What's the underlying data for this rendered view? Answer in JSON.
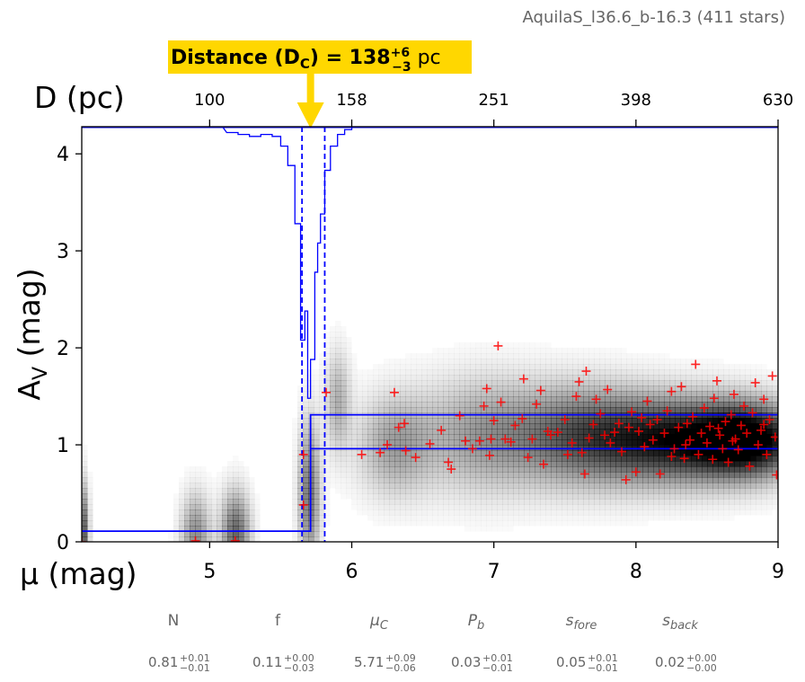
{
  "chart_data": {
    "type": "scatter",
    "title": "AquilaS_l36.6_b-16.3 (411 stars)",
    "xlabel": "μ (mag)",
    "ylabel": "A_V (mag)",
    "top_axis_label": "D (pc)",
    "xlim": [
      4.1,
      9.0
    ],
    "ylim": [
      0,
      4.28
    ],
    "x_ticks": [
      5,
      6,
      7,
      8,
      9
    ],
    "y_ticks": [
      0,
      1,
      2,
      3,
      4
    ],
    "top_ticks": [
      {
        "mu": 5.0,
        "label": "100"
      },
      {
        "mu": 6.0,
        "label": "158"
      },
      {
        "mu": 7.0,
        "label": "251"
      },
      {
        "mu": 8.0,
        "label": "398"
      },
      {
        "mu": 9.0,
        "label": "630"
      }
    ],
    "annotation": {
      "prefix": "Distance (D",
      "sub": "C",
      "mid": ") = 138",
      "sup": "+6",
      "sub2": "−3",
      "unit": " pc",
      "color": "#FFD700"
    },
    "model": {
      "mu_c": 5.71,
      "mu_c_lo": 5.65,
      "mu_c_hi": 5.81,
      "fore_av": 0.11,
      "back_av_low": 0.96,
      "back_av_high": 1.31,
      "line_color": "#0000ff"
    },
    "posterior_hist": [
      {
        "mu": 5.12,
        "depth": 0.06
      },
      {
        "mu": 5.2,
        "depth": 0.08
      },
      {
        "mu": 5.28,
        "depth": 0.1
      },
      {
        "mu": 5.36,
        "depth": 0.08
      },
      {
        "mu": 5.44,
        "depth": 0.1
      },
      {
        "mu": 5.5,
        "depth": 0.2
      },
      {
        "mu": 5.55,
        "depth": 0.4
      },
      {
        "mu": 5.6,
        "depth": 1.0
      },
      {
        "mu": 5.64,
        "depth": 2.2
      },
      {
        "mu": 5.67,
        "depth": 1.9
      },
      {
        "mu": 5.69,
        "depth": 2.8
      },
      {
        "mu": 5.71,
        "depth": 2.4
      },
      {
        "mu": 5.74,
        "depth": 1.5
      },
      {
        "mu": 5.76,
        "depth": 1.2
      },
      {
        "mu": 5.78,
        "depth": 0.9
      },
      {
        "mu": 5.81,
        "depth": 0.45
      },
      {
        "mu": 5.85,
        "depth": 0.2
      },
      {
        "mu": 5.9,
        "depth": 0.08
      },
      {
        "mu": 5.95,
        "depth": 0.03
      }
    ],
    "stars_color": "#ff0000",
    "stars": [
      [
        4.1,
        0.0
      ],
      [
        4.9,
        0.01
      ],
      [
        5.18,
        0.01
      ],
      [
        5.66,
        0.9
      ],
      [
        5.66,
        0.38
      ],
      [
        5.82,
        1.54
      ],
      [
        6.07,
        0.9
      ],
      [
        6.2,
        0.92
      ],
      [
        6.25,
        1.0
      ],
      [
        6.3,
        1.54
      ],
      [
        6.33,
        1.18
      ],
      [
        6.37,
        1.22
      ],
      [
        6.38,
        0.94
      ],
      [
        6.45,
        0.87
      ],
      [
        6.55,
        1.01
      ],
      [
        6.63,
        1.15
      ],
      [
        6.68,
        0.82
      ],
      [
        6.7,
        0.75
      ],
      [
        6.76,
        1.3
      ],
      [
        6.8,
        1.04
      ],
      [
        6.85,
        0.96
      ],
      [
        6.9,
        1.04
      ],
      [
        6.93,
        1.4
      ],
      [
        6.95,
        1.58
      ],
      [
        6.97,
        0.89
      ],
      [
        6.98,
        1.06
      ],
      [
        7.0,
        1.25
      ],
      [
        7.03,
        2.02
      ],
      [
        7.05,
        1.44
      ],
      [
        7.08,
        1.06
      ],
      [
        7.12,
        1.03
      ],
      [
        7.15,
        1.2
      ],
      [
        7.2,
        1.27
      ],
      [
        7.21,
        1.68
      ],
      [
        7.24,
        0.87
      ],
      [
        7.27,
        1.06
      ],
      [
        7.3,
        1.42
      ],
      [
        7.33,
        1.56
      ],
      [
        7.35,
        0.8
      ],
      [
        7.38,
        1.14
      ],
      [
        7.4,
        1.1
      ],
      [
        7.45,
        1.13
      ],
      [
        7.5,
        1.26
      ],
      [
        7.52,
        0.9
      ],
      [
        7.55,
        1.02
      ],
      [
        7.58,
        1.5
      ],
      [
        7.6,
        1.65
      ],
      [
        7.62,
        0.92
      ],
      [
        7.64,
        0.7
      ],
      [
        7.65,
        1.76
      ],
      [
        7.67,
        1.07
      ],
      [
        7.7,
        1.21
      ],
      [
        7.72,
        1.47
      ],
      [
        7.75,
        1.32
      ],
      [
        7.78,
        1.1
      ],
      [
        7.8,
        1.57
      ],
      [
        7.82,
        1.02
      ],
      [
        7.85,
        1.13
      ],
      [
        7.88,
        1.22
      ],
      [
        7.9,
        0.93
      ],
      [
        7.93,
        0.64
      ],
      [
        7.95,
        1.18
      ],
      [
        7.97,
        1.34
      ],
      [
        8.0,
        0.72
      ],
      [
        8.02,
        1.14
      ],
      [
        8.04,
        1.28
      ],
      [
        8.06,
        0.98
      ],
      [
        8.08,
        1.45
      ],
      [
        8.1,
        1.21
      ],
      [
        8.12,
        1.05
      ],
      [
        8.15,
        1.26
      ],
      [
        8.17,
        0.7
      ],
      [
        8.2,
        1.12
      ],
      [
        8.22,
        1.35
      ],
      [
        8.25,
        1.55
      ],
      [
        8.27,
        0.96
      ],
      [
        8.3,
        1.18
      ],
      [
        8.32,
        1.6
      ],
      [
        8.34,
        0.86
      ],
      [
        8.36,
        1.22
      ],
      [
        8.38,
        1.05
      ],
      [
        8.4,
        1.29
      ],
      [
        8.42,
        1.83
      ],
      [
        8.44,
        0.9
      ],
      [
        8.46,
        1.12
      ],
      [
        8.48,
        1.38
      ],
      [
        8.5,
        1.02
      ],
      [
        8.52,
        1.19
      ],
      [
        8.54,
        0.85
      ],
      [
        8.55,
        1.48
      ],
      [
        8.57,
        1.66
      ],
      [
        8.59,
        1.1
      ],
      [
        8.61,
        0.96
      ],
      [
        8.63,
        1.24
      ],
      [
        8.65,
        0.82
      ],
      [
        8.67,
        1.31
      ],
      [
        8.69,
        1.52
      ],
      [
        8.7,
        1.06
      ],
      [
        8.72,
        0.95
      ],
      [
        8.74,
        1.2
      ],
      [
        8.76,
        1.4
      ],
      [
        8.78,
        1.12
      ],
      [
        8.8,
        0.78
      ],
      [
        8.82,
        1.33
      ],
      [
        8.84,
        1.64
      ],
      [
        8.86,
        1.0
      ],
      [
        8.88,
        1.15
      ],
      [
        8.9,
        1.47
      ],
      [
        8.92,
        0.9
      ],
      [
        8.94,
        1.26
      ],
      [
        8.96,
        1.71
      ],
      [
        8.98,
        1.08
      ],
      [
        8.99,
        0.69
      ],
      [
        8.35,
        1.0
      ],
      [
        8.58,
        1.17
      ],
      [
        8.68,
        1.04
      ],
      [
        8.9,
        1.21
      ],
      [
        8.25,
        0.88
      ]
    ],
    "density_blobs": [
      {
        "mu": 4.1,
        "av": 0.08,
        "sx": 0.03,
        "sy": 0.35,
        "w": 0.75
      },
      {
        "mu": 4.9,
        "av": 0.05,
        "sx": 0.07,
        "sy": 0.3,
        "w": 0.45
      },
      {
        "mu": 5.18,
        "av": 0.08,
        "sx": 0.07,
        "sy": 0.3,
        "w": 0.6
      },
      {
        "mu": 5.7,
        "av": 0.5,
        "sx": 0.05,
        "sy": 0.5,
        "w": 0.55
      },
      {
        "mu": 5.9,
        "av": 1.45,
        "sx": 0.06,
        "sy": 0.35,
        "w": 0.3
      },
      {
        "mu": 6.3,
        "av": 1.0,
        "sx": 0.18,
        "sy": 0.35,
        "w": 0.35
      },
      {
        "mu": 6.9,
        "av": 1.1,
        "sx": 0.3,
        "sy": 0.4,
        "w": 0.35
      },
      {
        "mu": 7.6,
        "av": 1.1,
        "sx": 0.35,
        "sy": 0.35,
        "w": 0.55
      },
      {
        "mu": 8.3,
        "av": 1.05,
        "sx": 0.4,
        "sy": 0.3,
        "w": 0.85
      },
      {
        "mu": 8.8,
        "av": 1.05,
        "sx": 0.25,
        "sy": 0.25,
        "w": 0.9
      }
    ],
    "parameters": [
      {
        "name": "N",
        "italic": false,
        "value": "0.81",
        "plus": "+0.01",
        "minus": "−0.01"
      },
      {
        "name": "f",
        "italic": false,
        "value": "0.11",
        "plus": "+0.00",
        "minus": "−0.03"
      },
      {
        "name": "μ",
        "sub": "C",
        "italic": true,
        "value": "5.71",
        "plus": "+0.09",
        "minus": "−0.06"
      },
      {
        "name": "P",
        "sub": "b",
        "italic": true,
        "value": "0.03",
        "plus": "+0.01",
        "minus": "−0.01"
      },
      {
        "name": "s",
        "sub": "fore",
        "italic": true,
        "value": "0.05",
        "plus": "+0.01",
        "minus": "−0.01"
      },
      {
        "name": "s",
        "sub": "back",
        "italic": true,
        "value": "0.02",
        "plus": "+0.00",
        "minus": "−0.00"
      }
    ]
  }
}
